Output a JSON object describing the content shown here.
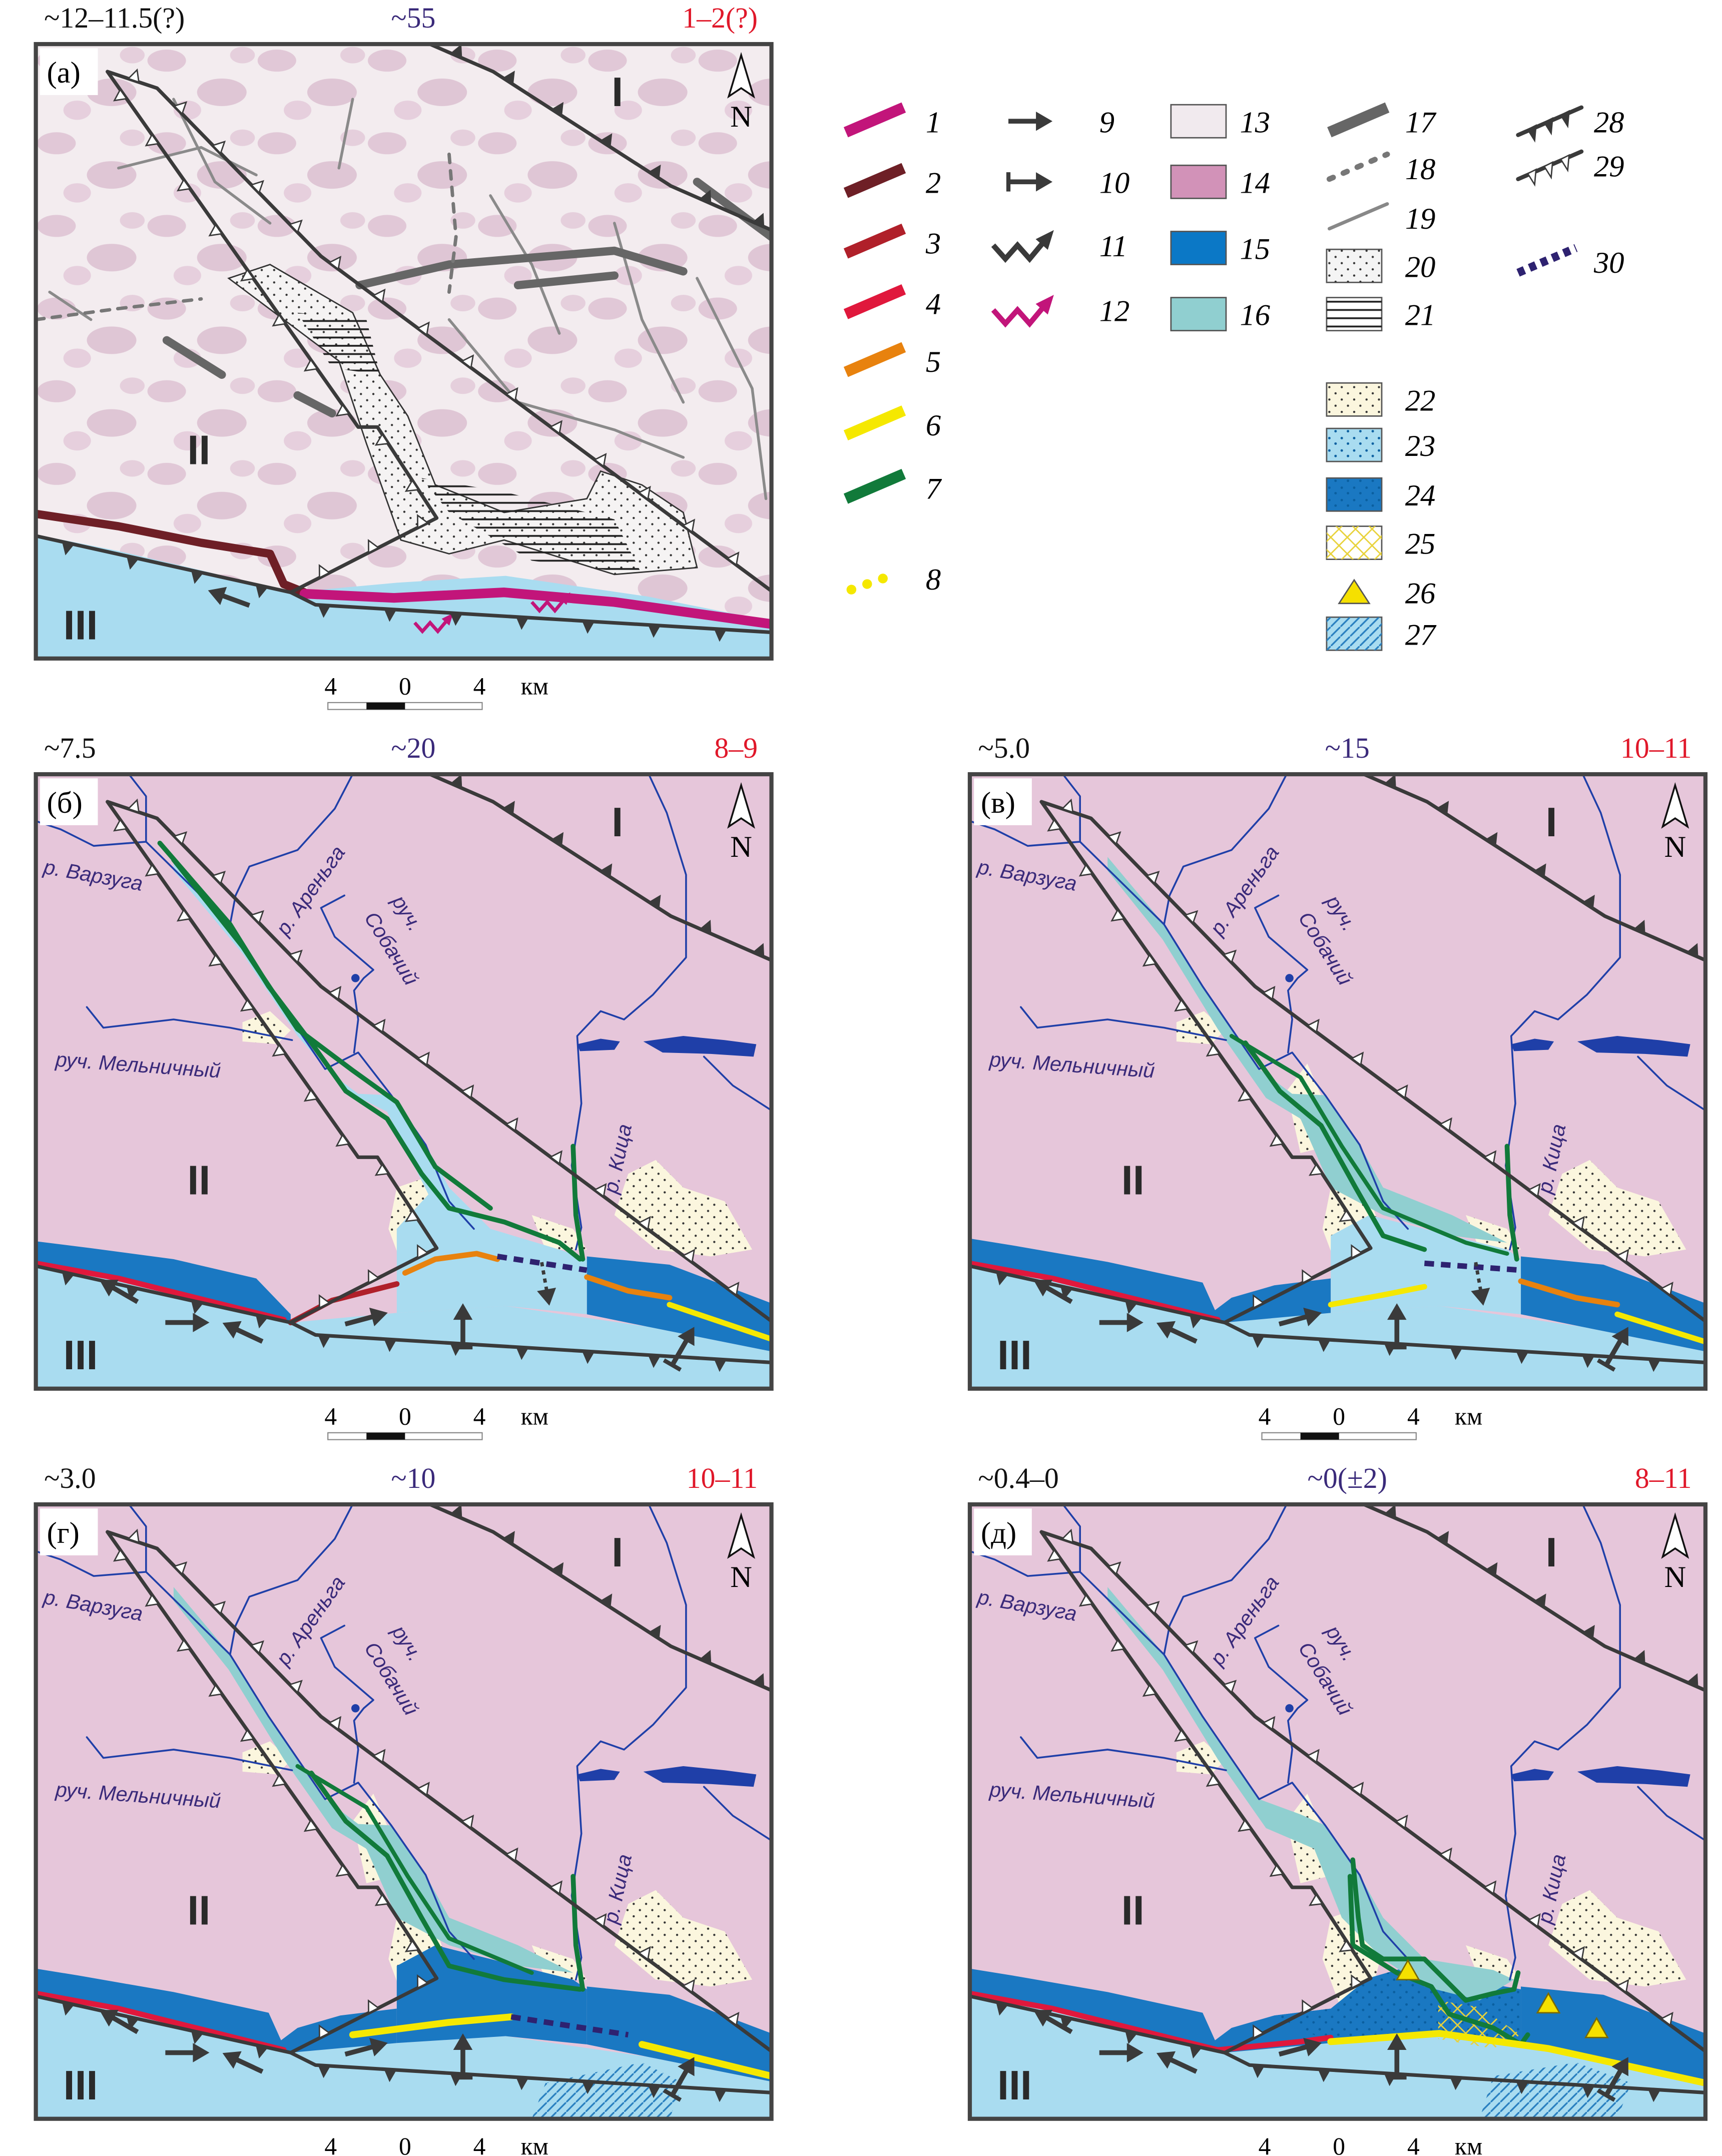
{
  "colors": {
    "land_I_II": "#e6c6da",
    "sea": "#a9dcf0",
    "sea_deep": "#1a78c2",
    "lagoon": "#90cfd0",
    "sand": "#fbf6de",
    "shore_green": "#117a3a",
    "shore_yellow": "#f5e800",
    "shore_orange": "#e8820e",
    "shore_red": "#e0183c",
    "shore_dark_red": "#b0202a",
    "shore_brown": "#6e1f26",
    "shore_magenta": "#c2157a",
    "boundary_purple": "#2e2270",
    "fault": "#3a3a3a",
    "header_mid": "#3a2a7a",
    "header_right": "#e0182a"
  },
  "panels": [
    {
      "letter": "(a)",
      "stage": "a",
      "header": {
        "left": "~12–11.5(?)",
        "middle": "~55",
        "right": "1–2(?)"
      }
    },
    {
      "letter": "(б)",
      "stage": "b",
      "header": {
        "left": "~7.5",
        "middle": "~20",
        "right": "8–9"
      }
    },
    {
      "letter": "(в)",
      "stage": "v",
      "header": {
        "left": "~5.0",
        "middle": "~15",
        "right": "10–11"
      }
    },
    {
      "letter": "(г)",
      "stage": "g",
      "header": {
        "left": "~3.0",
        "middle": "~10",
        "right": "10–11"
      }
    },
    {
      "letter": "(д)",
      "stage": "d",
      "header": {
        "left": "~0.4–0",
        "middle": "~0(±2)",
        "right": "8–11"
      }
    }
  ],
  "places": {
    "varzuga": "р. Варзуга",
    "arenga": "р. Ареньга",
    "sobachiy_1": "руч.",
    "sobachiy_2": "Собачий",
    "melnichny": "руч. Мельничный",
    "kitsa": "р. Кица"
  },
  "regions": {
    "r1": "I",
    "r2": "II",
    "r3": "III"
  },
  "north": "N",
  "scale": {
    "left": "4",
    "mid": "0",
    "right": "4",
    "unit": "км"
  },
  "legend": {
    "items": [
      {
        "n": "1",
        "symbol": "line",
        "color": "#c2157a"
      },
      {
        "n": "2",
        "symbol": "line",
        "color": "#6e1f26"
      },
      {
        "n": "3",
        "symbol": "line",
        "color": "#b0202a"
      },
      {
        "n": "4",
        "symbol": "line",
        "color": "#e0183c"
      },
      {
        "n": "5",
        "symbol": "line",
        "color": "#e8820e"
      },
      {
        "n": "6",
        "symbol": "line",
        "color": "#f5e800"
      },
      {
        "n": "7",
        "symbol": "line",
        "color": "#117a3a"
      },
      {
        "n": "8",
        "symbol": "dots",
        "color": "#f5e800"
      },
      {
        "n": "9",
        "symbol": "arrow",
        "color": "#3a3a3a"
      },
      {
        "n": "10",
        "symbol": "bar-arrow",
        "color": "#3a3a3a"
      },
      {
        "n": "11",
        "symbol": "zigzag-arrow",
        "color": "#3a3a3a"
      },
      {
        "n": "12",
        "symbol": "zigzag-arrow",
        "color": "#c2157a"
      },
      {
        "n": "13",
        "symbol": "box",
        "color": "#f1eaee"
      },
      {
        "n": "14",
        "symbol": "box",
        "color": "#d292b8"
      },
      {
        "n": "15",
        "symbol": "box",
        "color": "#0b78c6"
      },
      {
        "n": "16",
        "symbol": "box",
        "color": "#90cfd0"
      },
      {
        "n": "17",
        "symbol": "line",
        "color": "#666666"
      },
      {
        "n": "18",
        "symbol": "dashdot",
        "color": "#777777"
      },
      {
        "n": "19",
        "symbol": "thinline",
        "color": "#888888"
      },
      {
        "n": "20",
        "symbol": "dotbox",
        "color": "#f4f4f4"
      },
      {
        "n": "21",
        "symbol": "hatchbox",
        "color": "#ffffff"
      },
      {
        "n": "22",
        "symbol": "dotbox",
        "color": "#fbf6de"
      },
      {
        "n": "23",
        "symbol": "dotbox",
        "color": "#a9dcf0"
      },
      {
        "n": "24",
        "symbol": "dotbox",
        "color": "#1a78c2"
      },
      {
        "n": "25",
        "symbol": "crossbox",
        "color": "#ffffff"
      },
      {
        "n": "26",
        "symbol": "triangle",
        "color": "#f5e000"
      },
      {
        "n": "27",
        "symbol": "diagbox",
        "color": "#a9dcf0"
      },
      {
        "n": "28",
        "symbol": "thrust-filled",
        "color": "#3a3a3a"
      },
      {
        "n": "29",
        "symbol": "thrust-open",
        "color": "#3a3a3a"
      },
      {
        "n": "30",
        "symbol": "dashed",
        "color": "#2e2270"
      }
    ]
  }
}
